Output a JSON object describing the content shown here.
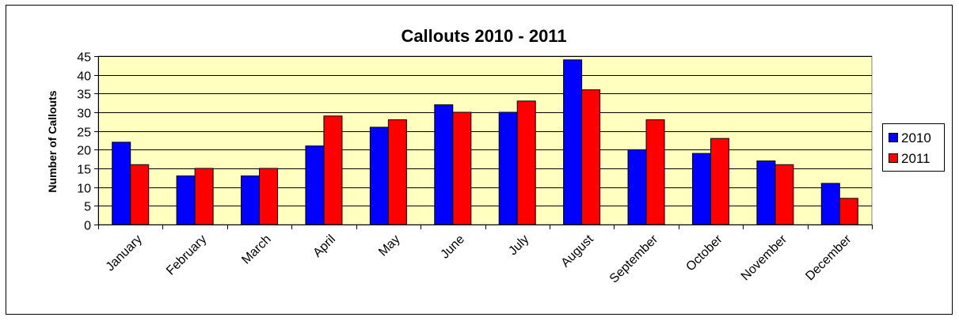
{
  "chart_data": {
    "type": "bar",
    "title": "Callouts 2010 - 2011",
    "xlabel": "",
    "ylabel": "Number of Callouts",
    "ylim": [
      0,
      45
    ],
    "yticks": [
      0,
      5,
      10,
      15,
      20,
      25,
      30,
      35,
      40,
      45
    ],
    "grid": true,
    "legend_position": "right",
    "plot_background": "#FFFFC0",
    "categories": [
      "January",
      "February",
      "March",
      "April",
      "May",
      "June",
      "July",
      "August",
      "September",
      "October",
      "November",
      "December"
    ],
    "series": [
      {
        "name": "2010",
        "color": "#0000FF",
        "values": [
          22,
          13,
          13,
          21,
          26,
          32,
          30,
          44,
          20,
          19,
          17,
          11
        ]
      },
      {
        "name": "2011",
        "color": "#FF0000",
        "values": [
          16,
          15,
          15,
          29,
          28,
          30,
          33,
          36,
          28,
          23,
          16,
          7
        ]
      }
    ]
  }
}
